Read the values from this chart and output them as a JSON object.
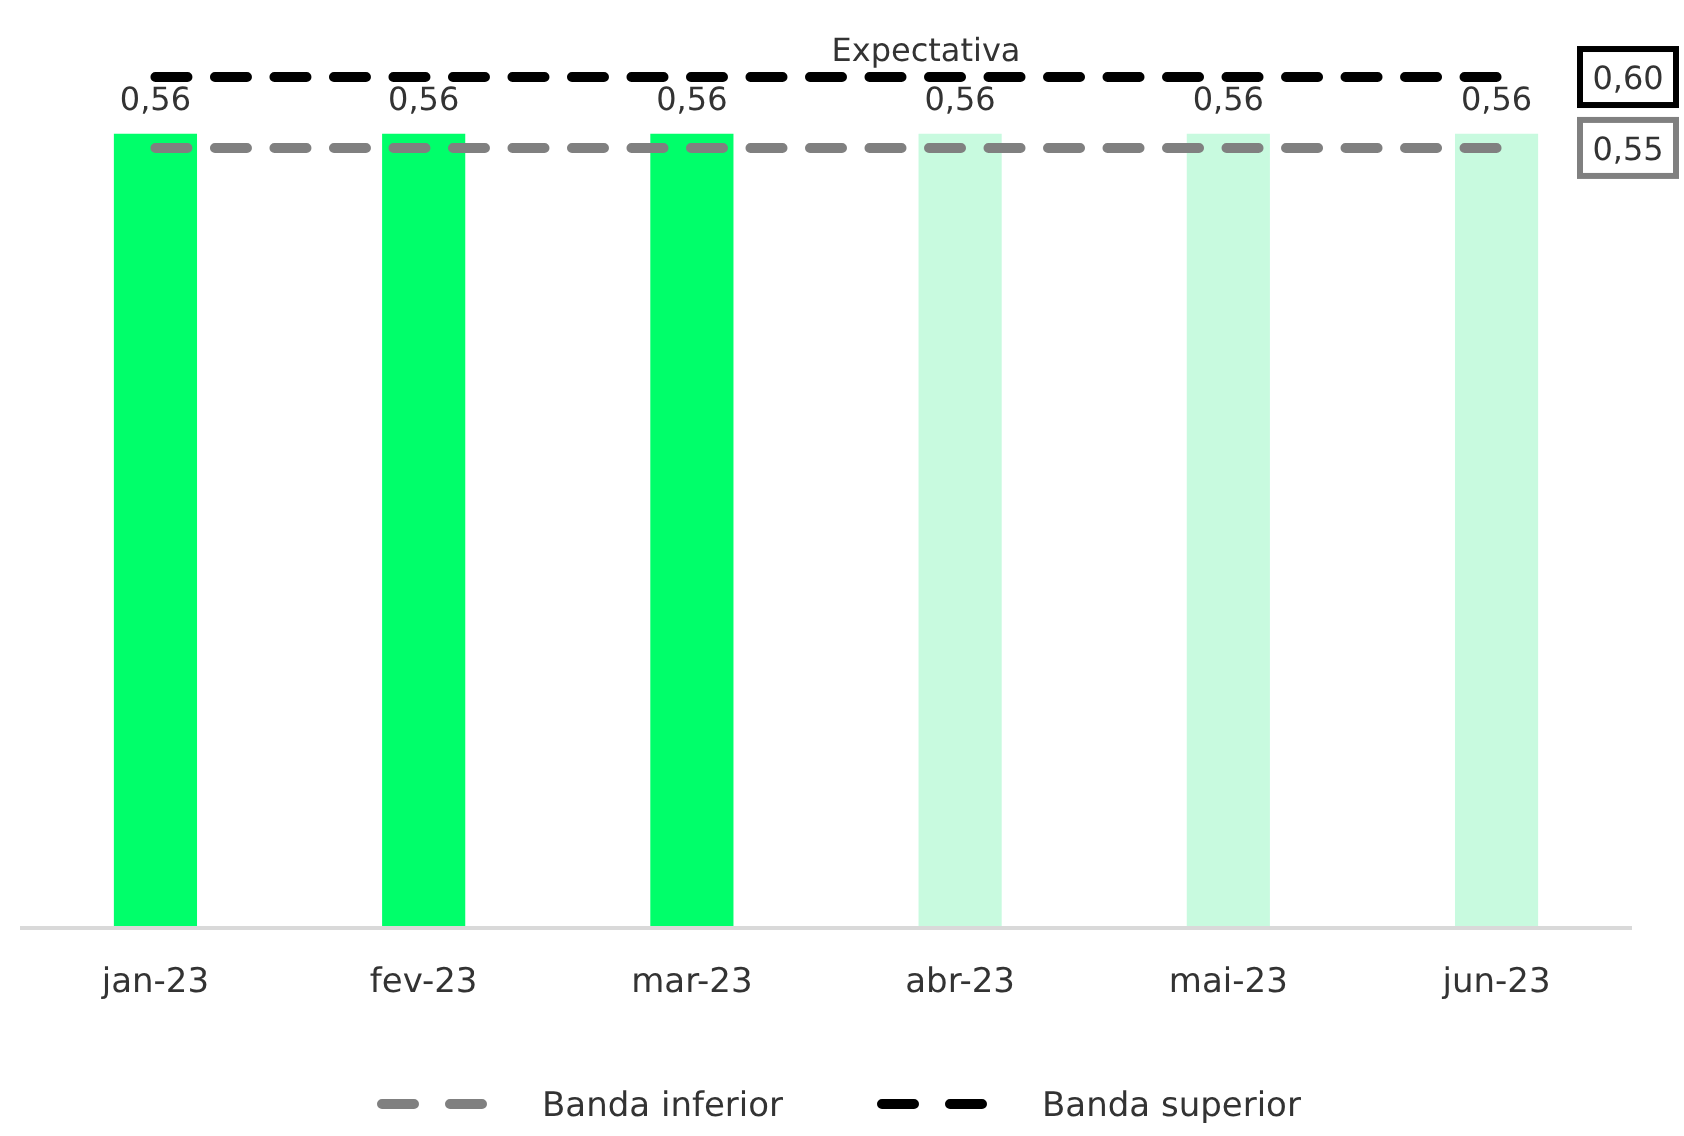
{
  "chart_data": {
    "type": "bar",
    "categories": [
      "jan-23",
      "fev-23",
      "mar-23",
      "abr-23",
      "mai-23",
      "jun-23"
    ],
    "tick_labels": "x",
    "legend": "bottom",
    "annotations": [
      "Expectativa",
      "0,60",
      "0,55"
    ],
    "series": [
      {
        "color": "#00ff6a",
        "values": [
          0.56,
          0.56,
          0.56,
          null,
          null,
          null
        ],
        "value_labels": [
          "0,56",
          "0,56",
          "0,56",
          null,
          null,
          null
        ]
      },
      {
        "color": "#c8fadf",
        "values": [
          null,
          null,
          null,
          0.56,
          0.56,
          0.56
        ],
        "value_labels": [
          null,
          null,
          null,
          "0,56",
          "0,56",
          "0,56"
        ]
      }
    ],
    "ref_lines": [
      {
        "axis": "y",
        "value": 0.55,
        "label": "Banda inferior",
        "color": "#808080",
        "line_style": "dashed"
      },
      {
        "axis": "y",
        "value": 0.6,
        "label": "Banda superior",
        "color": "#000000",
        "line_style": "dashed"
      }
    ]
  }
}
